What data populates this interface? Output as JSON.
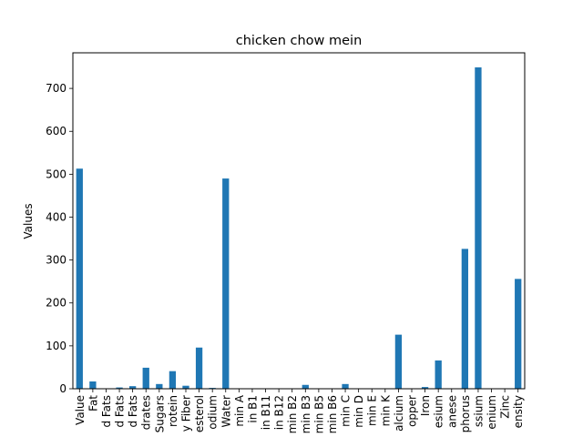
{
  "chart_data": {
    "type": "bar",
    "title": "chicken chow mein",
    "xlabel": "",
    "ylabel": "Values",
    "ylim": [
      0,
      783
    ],
    "yticks": [
      0,
      100,
      200,
      300,
      400,
      500,
      600,
      700
    ],
    "grid": false,
    "legend": "none",
    "bar_color": "#1f77b4",
    "categories": [
      "Value",
      "Fat",
      "d Fats",
      "d Fats",
      "d Fats",
      "drates",
      "Sugars",
      "rotein",
      "y Fiber",
      "esterol",
      "odium",
      "Water",
      "min A",
      "in B1",
      "in B11",
      "in B12",
      "min B2",
      "min B3",
      "min B5",
      "min B6",
      "min C",
      "min D",
      "min E",
      "min K",
      "alcium",
      "opper",
      "Iron",
      "esium",
      "anese",
      "phorus",
      "ssium",
      "enium",
      "Zinc",
      "ensity"
    ],
    "values": [
      513,
      17,
      1,
      3,
      6,
      49,
      11,
      41,
      7,
      96,
      2,
      490,
      0,
      0,
      0,
      0,
      0,
      9,
      1,
      1,
      11,
      0,
      1,
      0,
      126,
      0,
      4,
      66,
      0,
      326,
      749,
      0,
      1,
      256
    ]
  }
}
